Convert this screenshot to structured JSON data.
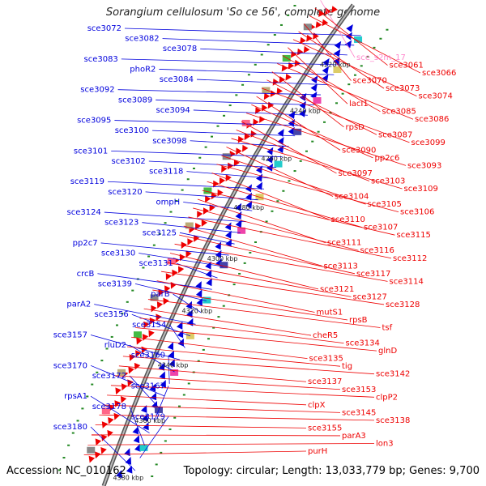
{
  "title": "Sorangium cellulosum 'So ce 56', complete genome",
  "footer": {
    "accession": "Accession: NC_010162",
    "stats": "Topology: circular; Length: 13,033,779 bp; Genes: 9,700"
  },
  "colors": {
    "forward_strand": "#0000dd",
    "reverse_strand": "#ee0000",
    "rna_label": "#ff88cc",
    "backbone": "#888888",
    "tick": "#228822"
  },
  "kbp_ticks": [
    "4220 kbp",
    "4240 kbp",
    "4260 kbp",
    "4280 kbp",
    "4300 kbp",
    "4320 kbp",
    "4340 kbp",
    "4360 kbp",
    "4380 kbp"
  ],
  "left_genes": [
    "sce3072",
    "sce3082",
    "sce3078",
    "sce3083",
    "phoR2",
    "sce3084",
    "sce3092",
    "sce3089",
    "sce3094",
    "sce3095",
    "sce3100",
    "sce3098",
    "sce3101",
    "sce3102",
    "sce3118",
    "sce3119",
    "sce3120",
    "ompH",
    "sce3124",
    "sce3123",
    "sce3125",
    "pp2c7",
    "sce3130",
    "sce3131",
    "crcB",
    "sce3139",
    "parB",
    "parA2",
    "sce3156",
    "sce3154",
    "sce3157",
    "rluD2",
    "sce3160",
    "sce3170",
    "sce3172",
    "sce3167",
    "rpsA1",
    "sce3178",
    "sce3179",
    "sce3180"
  ],
  "right_genes": [
    "sce_s2m_17",
    "sce3061",
    "sce3066",
    "sce3070",
    "sce3073",
    "sce3074",
    "lacI1",
    "sce3085",
    "sce3086",
    "rpsD",
    "sce3087",
    "sce3099",
    "sce3090",
    "pp2c6",
    "sce3093",
    "sce3097",
    "sce3103",
    "sce3109",
    "sce3104",
    "sce3105",
    "sce3106",
    "sce3110",
    "sce3107",
    "sce3115",
    "sce3111",
    "sce3116",
    "sce3112",
    "sce3113",
    "sce3117",
    "sce3114",
    "sce3121",
    "sce3127",
    "sce3128",
    "mutS1",
    "rpsB",
    "tsf",
    "cheR5",
    "sce3134",
    "glnD",
    "sce3135",
    "tig",
    "sce3142",
    "sce3137",
    "sce3153",
    "clpP2",
    "clpX",
    "sce3145",
    "sce3138",
    "sce3155",
    "parA3",
    "lon3",
    "purH"
  ]
}
